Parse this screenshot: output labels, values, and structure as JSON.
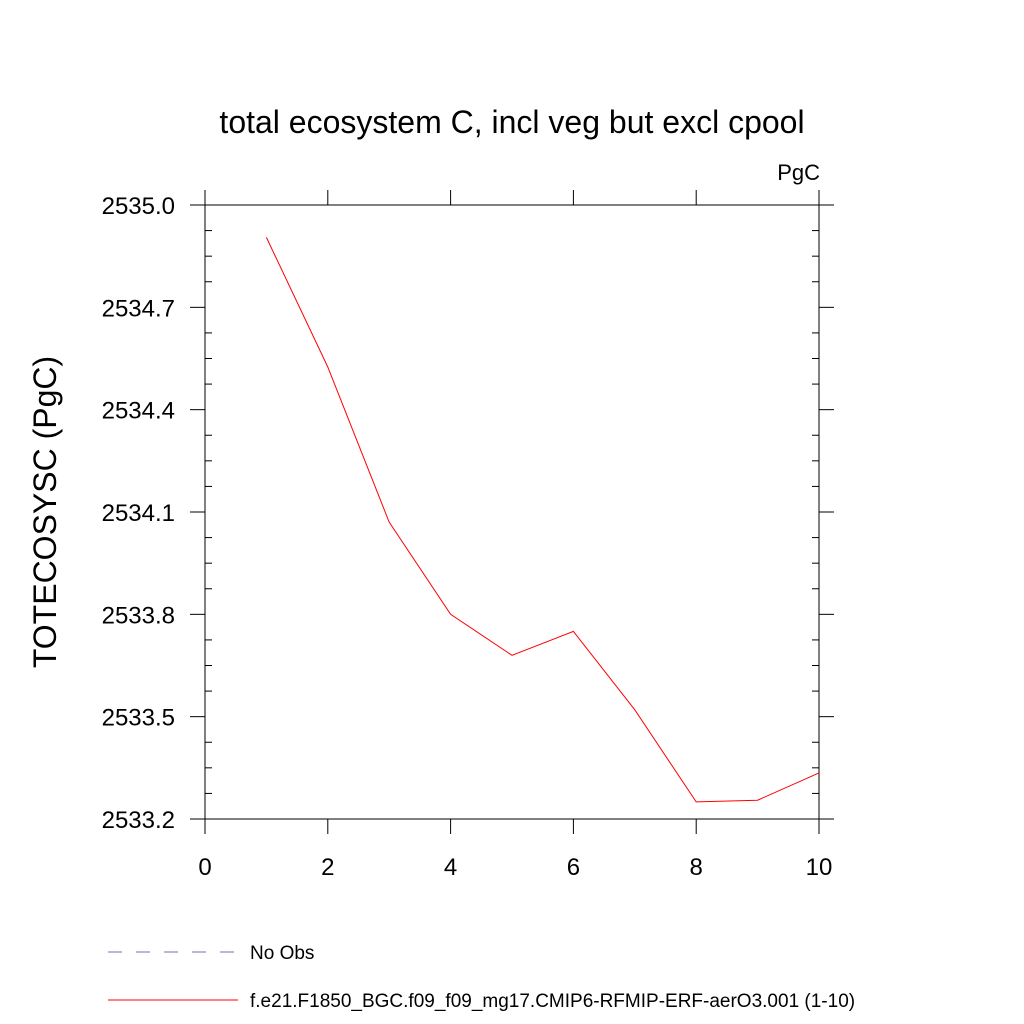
{
  "chart_data": {
    "type": "line",
    "title": "total ecosystem C, incl veg but excl cpool",
    "units": "PgC",
    "xlabel": "",
    "ylabel": "TOTECOSYSC  (PgC)",
    "xlim": [
      0,
      10
    ],
    "ylim": [
      2533.2,
      2535.0
    ],
    "xticks": [
      0,
      2,
      4,
      6,
      8,
      10
    ],
    "xtick_labels": [
      "0",
      "2",
      "4",
      "6",
      "8",
      "10"
    ],
    "yticks": [
      2533.2,
      2533.5,
      2533.8,
      2534.1,
      2534.4,
      2534.7,
      2535.0
    ],
    "ytick_labels": [
      "2533.2",
      "2533.5",
      "2533.8",
      "2534.1",
      "2534.4",
      "2534.7",
      "2535.0"
    ],
    "grid": false,
    "series": [
      {
        "name": "f.e21.F1850_BGC.f09_f09_mg17.CMIP6-RFMIP-ERF-aerO3.001 (1-10)",
        "color": "#ff0000",
        "style": "solid",
        "x": [
          1,
          2,
          3,
          4,
          5,
          6,
          7,
          8,
          9,
          10
        ],
        "y": [
          2534.905,
          2534.525,
          2534.07,
          2533.8,
          2533.68,
          2533.75,
          2533.52,
          2533.25,
          2533.255,
          2533.335
        ]
      }
    ],
    "legend": [
      {
        "label": "No Obs",
        "color": "#7a6fb0",
        "style": "dashed"
      },
      {
        "label": "f.e21.F1850_BGC.f09_f09_mg17.CMIP6-RFMIP-ERF-aerO3.001 (1-10)",
        "color": "#ff0000",
        "style": "solid"
      }
    ],
    "legend_position": "bottom"
  }
}
